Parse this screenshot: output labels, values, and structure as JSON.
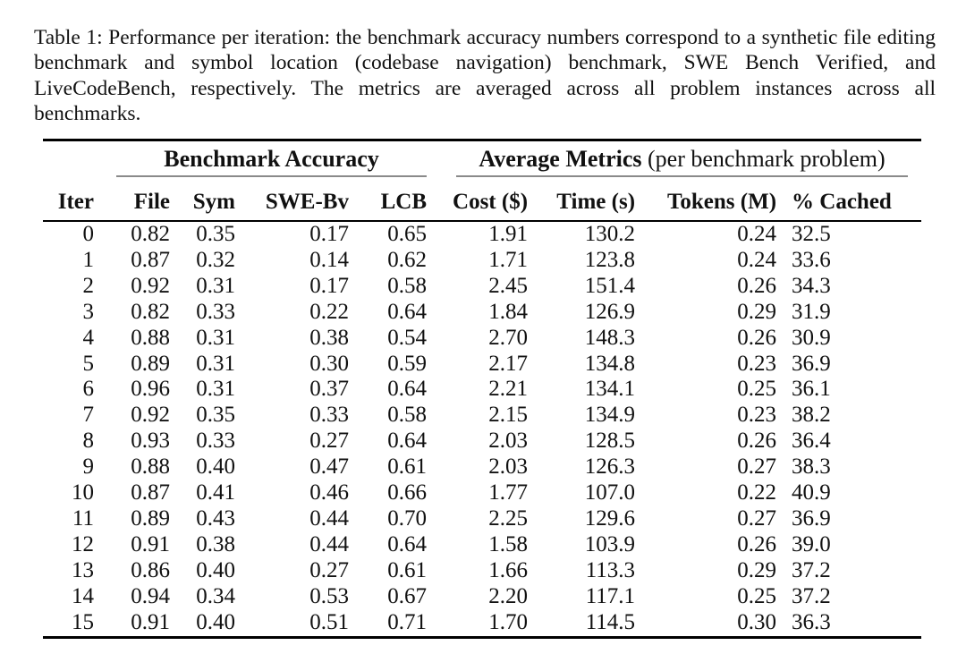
{
  "caption": "Table 1: Performance per iteration: the benchmark accuracy numbers correspond to a synthetic file editing benchmark and symbol location (codebase navigation) benchmark, SWE Bench Verified, and LiveCodeBench, respectively. The metrics are averaged across all problem instances across all benchmarks.",
  "colors": {
    "background": "#ffffff",
    "text": "#111111",
    "rule": "#000000",
    "cmidrule": "#8a8a8a"
  },
  "table": {
    "group_headers": {
      "benchmark": "Benchmark Accuracy",
      "metrics_bold": "Average Metrics",
      "metrics_note": " (per benchmark problem)"
    },
    "columns": [
      "Iter",
      "File",
      "Sym",
      "SWE-Bv",
      "LCB",
      "Cost ($)",
      "Time (s)",
      "Tokens (M)",
      "% Cached"
    ],
    "rows": [
      [
        "0",
        "0.82",
        "0.35",
        "0.17",
        "0.65",
        "1.91",
        "130.2",
        "0.24",
        "32.5"
      ],
      [
        "1",
        "0.87",
        "0.32",
        "0.14",
        "0.62",
        "1.71",
        "123.8",
        "0.24",
        "33.6"
      ],
      [
        "2",
        "0.92",
        "0.31",
        "0.17",
        "0.58",
        "2.45",
        "151.4",
        "0.26",
        "34.3"
      ],
      [
        "3",
        "0.82",
        "0.33",
        "0.22",
        "0.64",
        "1.84",
        "126.9",
        "0.29",
        "31.9"
      ],
      [
        "4",
        "0.88",
        "0.31",
        "0.38",
        "0.54",
        "2.70",
        "148.3",
        "0.26",
        "30.9"
      ],
      [
        "5",
        "0.89",
        "0.31",
        "0.30",
        "0.59",
        "2.17",
        "134.8",
        "0.23",
        "36.9"
      ],
      [
        "6",
        "0.96",
        "0.31",
        "0.37",
        "0.64",
        "2.21",
        "134.1",
        "0.25",
        "36.1"
      ],
      [
        "7",
        "0.92",
        "0.35",
        "0.33",
        "0.58",
        "2.15",
        "134.9",
        "0.23",
        "38.2"
      ],
      [
        "8",
        "0.93",
        "0.33",
        "0.27",
        "0.64",
        "2.03",
        "128.5",
        "0.26",
        "36.4"
      ],
      [
        "9",
        "0.88",
        "0.40",
        "0.47",
        "0.61",
        "2.03",
        "126.3",
        "0.27",
        "38.3"
      ],
      [
        "10",
        "0.87",
        "0.41",
        "0.46",
        "0.66",
        "1.77",
        "107.0",
        "0.22",
        "40.9"
      ],
      [
        "11",
        "0.89",
        "0.43",
        "0.44",
        "0.70",
        "2.25",
        "129.6",
        "0.27",
        "36.9"
      ],
      [
        "12",
        "0.91",
        "0.38",
        "0.44",
        "0.64",
        "1.58",
        "103.9",
        "0.26",
        "39.0"
      ],
      [
        "13",
        "0.86",
        "0.40",
        "0.27",
        "0.61",
        "1.66",
        "113.3",
        "0.29",
        "37.2"
      ],
      [
        "14",
        "0.94",
        "0.34",
        "0.53",
        "0.67",
        "2.20",
        "117.1",
        "0.25",
        "37.2"
      ],
      [
        "15",
        "0.91",
        "0.40",
        "0.51",
        "0.71",
        "1.70",
        "114.5",
        "0.30",
        "36.3"
      ]
    ]
  }
}
